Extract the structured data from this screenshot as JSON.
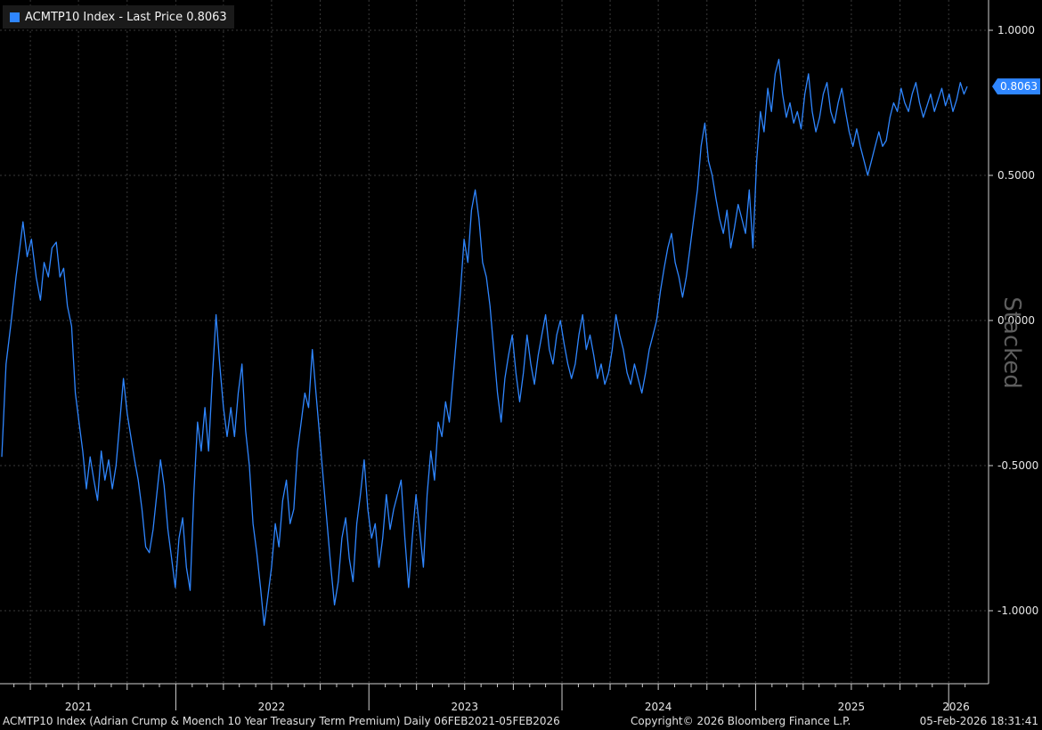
{
  "legend": {
    "text": "ACMTP10 Index - Last Price 0.8063",
    "color": "#2f86ff"
  },
  "stamp": "Stacked",
  "footer": {
    "description": "ACMTP10 Index (Adrian Crump & Moench 10 Year Treasury Term Premium) Daily 06FEB2021-05FEB2026",
    "copyright": "Copyright© 2026 Bloomberg Finance L.P.",
    "timestamp": "05-Feb-2026 18:31:41"
  },
  "colors": {
    "background": "#000000",
    "line": "#2f86ff",
    "grid": "#3a3a3a",
    "axis": "#cfcfcf"
  },
  "chart_data": {
    "type": "line",
    "title": "",
    "xlabel": "",
    "ylabel": "",
    "xlim": [
      "2021-02-06",
      "2026-02-05"
    ],
    "ylim": [
      -1.25,
      1.07
    ],
    "yticks": [
      {
        "value": 1.0,
        "label": "1.0000"
      },
      {
        "value": 0.5,
        "label": "0.5000"
      },
      {
        "value": 0.0,
        "label": "0.0000"
      },
      {
        "value": -0.5,
        "label": "-0.5000"
      },
      {
        "value": -1.0,
        "label": "-1.0000"
      }
    ],
    "xticks": [
      {
        "date": "2021-07-01",
        "label": "2021"
      },
      {
        "date": "2022-07-01",
        "label": "2022"
      },
      {
        "date": "2023-07-01",
        "label": "2023"
      },
      {
        "date": "2024-07-01",
        "label": "2024"
      },
      {
        "date": "2025-07-01",
        "label": "2025"
      },
      {
        "date": "2026-01-15",
        "label": "2026"
      }
    ],
    "grid": true,
    "last_value": {
      "value": 0.8063,
      "label": "0.8063"
    },
    "series": [
      {
        "name": "ACMTP10 Index",
        "color": "#2f86ff",
        "points": [
          [
            "2021-02-06",
            -0.47
          ],
          [
            "2021-02-14",
            -0.15
          ],
          [
            "2021-02-24",
            0.0
          ],
          [
            "2021-03-05",
            0.15
          ],
          [
            "2021-03-12",
            0.25
          ],
          [
            "2021-03-18",
            0.34
          ],
          [
            "2021-03-26",
            0.22
          ],
          [
            "2021-04-03",
            0.28
          ],
          [
            "2021-04-12",
            0.15
          ],
          [
            "2021-04-20",
            0.07
          ],
          [
            "2021-04-27",
            0.2
          ],
          [
            "2021-05-05",
            0.15
          ],
          [
            "2021-05-12",
            0.25
          ],
          [
            "2021-05-20",
            0.27
          ],
          [
            "2021-05-27",
            0.15
          ],
          [
            "2021-06-03",
            0.18
          ],
          [
            "2021-06-10",
            0.05
          ],
          [
            "2021-06-18",
            -0.02
          ],
          [
            "2021-06-25",
            -0.25
          ],
          [
            "2021-07-02",
            -0.35
          ],
          [
            "2021-07-09",
            -0.45
          ],
          [
            "2021-07-16",
            -0.58
          ],
          [
            "2021-07-23",
            -0.47
          ],
          [
            "2021-07-30",
            -0.55
          ],
          [
            "2021-08-06",
            -0.62
          ],
          [
            "2021-08-13",
            -0.45
          ],
          [
            "2021-08-20",
            -0.55
          ],
          [
            "2021-08-27",
            -0.48
          ],
          [
            "2021-09-03",
            -0.58
          ],
          [
            "2021-09-10",
            -0.5
          ],
          [
            "2021-09-17",
            -0.35
          ],
          [
            "2021-09-24",
            -0.2
          ],
          [
            "2021-10-01",
            -0.32
          ],
          [
            "2021-10-08",
            -0.4
          ],
          [
            "2021-10-15",
            -0.48
          ],
          [
            "2021-10-22",
            -0.55
          ],
          [
            "2021-10-29",
            -0.65
          ],
          [
            "2021-11-05",
            -0.78
          ],
          [
            "2021-11-12",
            -0.8
          ],
          [
            "2021-11-19",
            -0.72
          ],
          [
            "2021-11-26",
            -0.6
          ],
          [
            "2021-12-03",
            -0.48
          ],
          [
            "2021-12-10",
            -0.57
          ],
          [
            "2021-12-17",
            -0.72
          ],
          [
            "2021-12-24",
            -0.82
          ],
          [
            "2021-12-31",
            -0.92
          ],
          [
            "2022-01-07",
            -0.75
          ],
          [
            "2022-01-14",
            -0.68
          ],
          [
            "2022-01-21",
            -0.85
          ],
          [
            "2022-01-28",
            -0.93
          ],
          [
            "2022-02-04",
            -0.6
          ],
          [
            "2022-02-11",
            -0.35
          ],
          [
            "2022-02-18",
            -0.45
          ],
          [
            "2022-02-25",
            -0.3
          ],
          [
            "2022-03-04",
            -0.45
          ],
          [
            "2022-03-11",
            -0.2
          ],
          [
            "2022-03-18",
            0.02
          ],
          [
            "2022-03-25",
            -0.15
          ],
          [
            "2022-04-01",
            -0.3
          ],
          [
            "2022-04-08",
            -0.4
          ],
          [
            "2022-04-15",
            -0.3
          ],
          [
            "2022-04-22",
            -0.4
          ],
          [
            "2022-04-29",
            -0.25
          ],
          [
            "2022-05-06",
            -0.15
          ],
          [
            "2022-05-13",
            -0.38
          ],
          [
            "2022-05-20",
            -0.5
          ],
          [
            "2022-05-27",
            -0.7
          ],
          [
            "2022-06-03",
            -0.8
          ],
          [
            "2022-06-10",
            -0.92
          ],
          [
            "2022-06-17",
            -1.05
          ],
          [
            "2022-06-24",
            -0.95
          ],
          [
            "2022-07-01",
            -0.85
          ],
          [
            "2022-07-08",
            -0.7
          ],
          [
            "2022-07-15",
            -0.78
          ],
          [
            "2022-07-22",
            -0.62
          ],
          [
            "2022-07-29",
            -0.55
          ],
          [
            "2022-08-05",
            -0.7
          ],
          [
            "2022-08-12",
            -0.65
          ],
          [
            "2022-08-19",
            -0.45
          ],
          [
            "2022-08-26",
            -0.35
          ],
          [
            "2022-09-02",
            -0.25
          ],
          [
            "2022-09-09",
            -0.3
          ],
          [
            "2022-09-16",
            -0.1
          ],
          [
            "2022-09-23",
            -0.25
          ],
          [
            "2022-09-30",
            -0.4
          ],
          [
            "2022-10-07",
            -0.55
          ],
          [
            "2022-10-14",
            -0.7
          ],
          [
            "2022-10-21",
            -0.85
          ],
          [
            "2022-10-28",
            -0.98
          ],
          [
            "2022-11-04",
            -0.9
          ],
          [
            "2022-11-11",
            -0.75
          ],
          [
            "2022-11-18",
            -0.68
          ],
          [
            "2022-11-25",
            -0.82
          ],
          [
            "2022-12-02",
            -0.9
          ],
          [
            "2022-12-09",
            -0.7
          ],
          [
            "2022-12-16",
            -0.6
          ],
          [
            "2022-12-23",
            -0.48
          ],
          [
            "2022-12-30",
            -0.65
          ],
          [
            "2023-01-06",
            -0.75
          ],
          [
            "2023-01-13",
            -0.7
          ],
          [
            "2023-01-20",
            -0.85
          ],
          [
            "2023-01-27",
            -0.75
          ],
          [
            "2023-02-03",
            -0.6
          ],
          [
            "2023-02-10",
            -0.72
          ],
          [
            "2023-02-17",
            -0.65
          ],
          [
            "2023-02-24",
            -0.6
          ],
          [
            "2023-03-03",
            -0.55
          ],
          [
            "2023-03-10",
            -0.75
          ],
          [
            "2023-03-17",
            -0.92
          ],
          [
            "2023-03-24",
            -0.75
          ],
          [
            "2023-03-31",
            -0.6
          ],
          [
            "2023-04-07",
            -0.72
          ],
          [
            "2023-04-14",
            -0.85
          ],
          [
            "2023-04-21",
            -0.6
          ],
          [
            "2023-04-28",
            -0.45
          ],
          [
            "2023-05-05",
            -0.55
          ],
          [
            "2023-05-12",
            -0.35
          ],
          [
            "2023-05-19",
            -0.4
          ],
          [
            "2023-05-26",
            -0.28
          ],
          [
            "2023-06-02",
            -0.35
          ],
          [
            "2023-06-09",
            -0.2
          ],
          [
            "2023-06-16",
            -0.05
          ],
          [
            "2023-06-23",
            0.1
          ],
          [
            "2023-06-30",
            0.28
          ],
          [
            "2023-07-07",
            0.2
          ],
          [
            "2023-07-14",
            0.38
          ],
          [
            "2023-07-21",
            0.45
          ],
          [
            "2023-07-28",
            0.35
          ],
          [
            "2023-08-04",
            0.2
          ],
          [
            "2023-08-11",
            0.15
          ],
          [
            "2023-08-18",
            0.05
          ],
          [
            "2023-08-25",
            -0.1
          ],
          [
            "2023-09-01",
            -0.25
          ],
          [
            "2023-09-08",
            -0.35
          ],
          [
            "2023-09-15",
            -0.2
          ],
          [
            "2023-09-22",
            -0.12
          ],
          [
            "2023-09-29",
            -0.05
          ],
          [
            "2023-10-06",
            -0.18
          ],
          [
            "2023-10-13",
            -0.28
          ],
          [
            "2023-10-20",
            -0.18
          ],
          [
            "2023-10-27",
            -0.05
          ],
          [
            "2023-11-03",
            -0.15
          ],
          [
            "2023-11-10",
            -0.22
          ],
          [
            "2023-11-17",
            -0.12
          ],
          [
            "2023-11-24",
            -0.05
          ],
          [
            "2023-12-01",
            0.02
          ],
          [
            "2023-12-08",
            -0.1
          ],
          [
            "2023-12-15",
            -0.15
          ],
          [
            "2023-12-22",
            -0.05
          ],
          [
            "2023-12-29",
            0.0
          ],
          [
            "2024-01-05",
            -0.08
          ],
          [
            "2024-01-12",
            -0.15
          ],
          [
            "2024-01-19",
            -0.2
          ],
          [
            "2024-01-26",
            -0.15
          ],
          [
            "2024-02-02",
            -0.05
          ],
          [
            "2024-02-09",
            0.02
          ],
          [
            "2024-02-16",
            -0.1
          ],
          [
            "2024-02-23",
            -0.05
          ],
          [
            "2024-03-01",
            -0.12
          ],
          [
            "2024-03-08",
            -0.2
          ],
          [
            "2024-03-15",
            -0.15
          ],
          [
            "2024-03-22",
            -0.22
          ],
          [
            "2024-03-29",
            -0.18
          ],
          [
            "2024-04-05",
            -0.1
          ],
          [
            "2024-04-12",
            0.02
          ],
          [
            "2024-04-19",
            -0.05
          ],
          [
            "2024-04-26",
            -0.1
          ],
          [
            "2024-05-03",
            -0.18
          ],
          [
            "2024-05-10",
            -0.22
          ],
          [
            "2024-05-17",
            -0.15
          ],
          [
            "2024-05-24",
            -0.2
          ],
          [
            "2024-05-31",
            -0.25
          ],
          [
            "2024-06-07",
            -0.18
          ],
          [
            "2024-06-14",
            -0.1
          ],
          [
            "2024-06-21",
            -0.05
          ],
          [
            "2024-06-28",
            0.0
          ],
          [
            "2024-07-05",
            0.1
          ],
          [
            "2024-07-12",
            0.18
          ],
          [
            "2024-07-19",
            0.25
          ],
          [
            "2024-07-26",
            0.3
          ],
          [
            "2024-08-02",
            0.2
          ],
          [
            "2024-08-09",
            0.15
          ],
          [
            "2024-08-16",
            0.08
          ],
          [
            "2024-08-23",
            0.15
          ],
          [
            "2024-08-30",
            0.25
          ],
          [
            "2024-09-06",
            0.35
          ],
          [
            "2024-09-13",
            0.45
          ],
          [
            "2024-09-20",
            0.6
          ],
          [
            "2024-09-27",
            0.68
          ],
          [
            "2024-10-04",
            0.55
          ],
          [
            "2024-10-11",
            0.5
          ],
          [
            "2024-10-18",
            0.42
          ],
          [
            "2024-10-25",
            0.35
          ],
          [
            "2024-11-01",
            0.3
          ],
          [
            "2024-11-08",
            0.38
          ],
          [
            "2024-11-15",
            0.25
          ],
          [
            "2024-11-22",
            0.32
          ],
          [
            "2024-11-29",
            0.4
          ],
          [
            "2024-12-06",
            0.35
          ],
          [
            "2024-12-13",
            0.3
          ],
          [
            "2024-12-20",
            0.45
          ],
          [
            "2024-12-27",
            0.25
          ],
          [
            "2025-01-03",
            0.55
          ],
          [
            "2025-01-10",
            0.72
          ],
          [
            "2025-01-17",
            0.65
          ],
          [
            "2025-01-24",
            0.8
          ],
          [
            "2025-01-31",
            0.72
          ],
          [
            "2025-02-07",
            0.85
          ],
          [
            "2025-02-14",
            0.9
          ],
          [
            "2025-02-21",
            0.78
          ],
          [
            "2025-02-28",
            0.7
          ],
          [
            "2025-03-07",
            0.75
          ],
          [
            "2025-03-14",
            0.68
          ],
          [
            "2025-03-21",
            0.72
          ],
          [
            "2025-03-28",
            0.66
          ],
          [
            "2025-04-04",
            0.78
          ],
          [
            "2025-04-11",
            0.85
          ],
          [
            "2025-04-18",
            0.72
          ],
          [
            "2025-04-25",
            0.65
          ],
          [
            "2025-05-02",
            0.7
          ],
          [
            "2025-05-09",
            0.78
          ],
          [
            "2025-05-16",
            0.82
          ],
          [
            "2025-05-23",
            0.72
          ],
          [
            "2025-05-30",
            0.68
          ],
          [
            "2025-06-06",
            0.75
          ],
          [
            "2025-06-13",
            0.8
          ],
          [
            "2025-06-20",
            0.72
          ],
          [
            "2025-06-27",
            0.65
          ],
          [
            "2025-07-04",
            0.6
          ],
          [
            "2025-07-11",
            0.66
          ],
          [
            "2025-07-18",
            0.6
          ],
          [
            "2025-07-25",
            0.55
          ],
          [
            "2025-08-01",
            0.5
          ],
          [
            "2025-08-08",
            0.55
          ],
          [
            "2025-08-15",
            0.6
          ],
          [
            "2025-08-22",
            0.65
          ],
          [
            "2025-08-29",
            0.6
          ],
          [
            "2025-09-05",
            0.62
          ],
          [
            "2025-09-12",
            0.7
          ],
          [
            "2025-09-19",
            0.75
          ],
          [
            "2025-09-26",
            0.72
          ],
          [
            "2025-10-03",
            0.8
          ],
          [
            "2025-10-10",
            0.75
          ],
          [
            "2025-10-17",
            0.72
          ],
          [
            "2025-10-24",
            0.78
          ],
          [
            "2025-10-31",
            0.82
          ],
          [
            "2025-11-07",
            0.75
          ],
          [
            "2025-11-14",
            0.7
          ],
          [
            "2025-11-21",
            0.74
          ],
          [
            "2025-11-28",
            0.78
          ],
          [
            "2025-12-05",
            0.72
          ],
          [
            "2025-12-12",
            0.76
          ],
          [
            "2025-12-19",
            0.8
          ],
          [
            "2025-12-26",
            0.74
          ],
          [
            "2026-01-02",
            0.78
          ],
          [
            "2026-01-09",
            0.72
          ],
          [
            "2026-01-16",
            0.76
          ],
          [
            "2026-01-23",
            0.82
          ],
          [
            "2026-01-30",
            0.78
          ],
          [
            "2026-02-05",
            0.8063
          ]
        ]
      }
    ]
  }
}
